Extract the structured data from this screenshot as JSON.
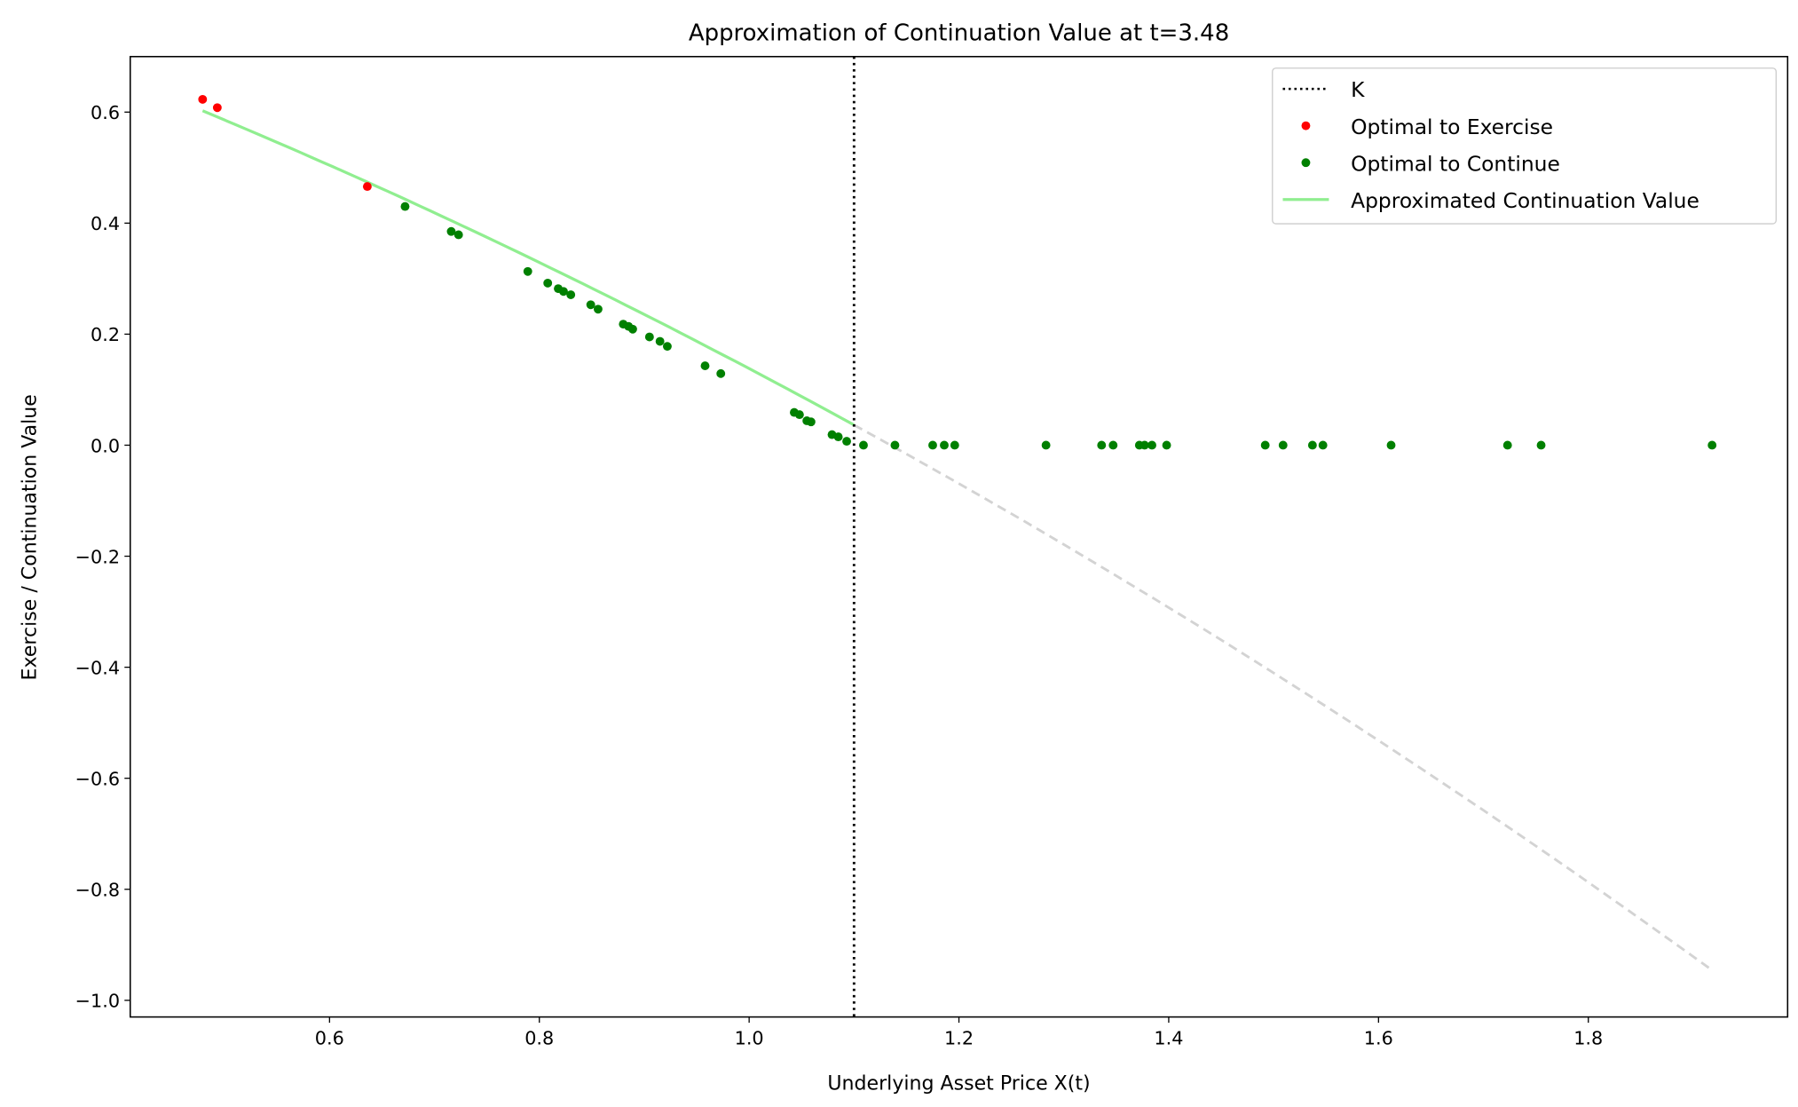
{
  "chart_data": {
    "type": "scatter",
    "title": "Approximation of Continuation Value at t=3.48",
    "xlabel": "Underlying Asset Price X(t)",
    "ylabel": "Exercise / Continuation Value",
    "xlim": [
      0.41,
      1.99
    ],
    "ylim": [
      -1.03,
      0.7
    ],
    "xticks": [
      0.6,
      0.8,
      1.0,
      1.2,
      1.4,
      1.6,
      1.8
    ],
    "xtick_labels": [
      "0.6",
      "0.8",
      "1.0",
      "1.2",
      "1.4",
      "1.6",
      "1.8"
    ],
    "yticks": [
      0.6,
      0.4,
      0.2,
      0.0,
      -0.2,
      -0.4,
      -0.6,
      -0.8,
      -1.0
    ],
    "ytick_labels": [
      "0.6",
      "0.4",
      "0.2",
      "0.0",
      "−0.2",
      "−0.4",
      "−0.6",
      "−0.8",
      "−1.0"
    ],
    "grid": false,
    "legend_position": "top-right",
    "K": 1.1,
    "series": [
      {
        "name": "K",
        "kind": "vline",
        "color": "#000000"
      },
      {
        "name": "Optimal to Exercise",
        "kind": "points",
        "color": "#ff0000",
        "x": [
          0.479,
          0.493,
          0.636
        ],
        "y": [
          0.623,
          0.608,
          0.466
        ]
      },
      {
        "name": "Optimal to Continue",
        "kind": "points",
        "color": "#008000",
        "x": [
          0.672,
          0.716,
          0.723,
          0.789,
          0.808,
          0.818,
          0.823,
          0.83,
          0.849,
          0.856,
          0.88,
          0.885,
          0.889,
          0.905,
          0.915,
          0.922,
          0.958,
          0.973,
          1.043,
          1.048,
          1.055,
          1.059,
          1.079,
          1.085,
          1.093,
          1.109,
          1.139,
          1.175,
          1.186,
          1.196,
          1.283,
          1.336,
          1.347,
          1.372,
          1.377,
          1.384,
          1.398,
          1.492,
          1.509,
          1.537,
          1.547,
          1.612,
          1.723,
          1.755,
          1.918
        ],
        "y": [
          0.43,
          0.385,
          0.379,
          0.313,
          0.292,
          0.282,
          0.277,
          0.271,
          0.253,
          0.245,
          0.218,
          0.214,
          0.209,
          0.195,
          0.187,
          0.178,
          0.143,
          0.129,
          0.059,
          0.055,
          0.044,
          0.042,
          0.019,
          0.015,
          0.007,
          0,
          0,
          0,
          0,
          0,
          0,
          0,
          0,
          0,
          0,
          0,
          0,
          0,
          0,
          0,
          0,
          0,
          0,
          0,
          0
        ]
      },
      {
        "name": "Approximated Continuation Value",
        "kind": "curve",
        "color": "#90ee90",
        "coefficients": [
          0.933,
          -0.594,
          -0.201
        ],
        "x_range": [
          0.479,
          1.1
        ]
      },
      {
        "name": "extrapolated",
        "kind": "curve",
        "color": "#d3d3d3",
        "coefficients": [
          0.933,
          -0.594,
          -0.201
        ],
        "x_range": [
          1.1,
          1.918
        ]
      }
    ]
  }
}
